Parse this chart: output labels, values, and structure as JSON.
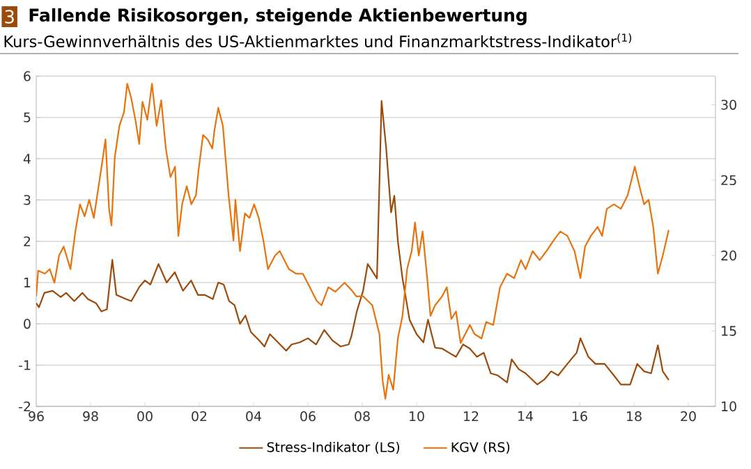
{
  "chart_data": {
    "type": "line",
    "title": "Fallende Risikosorgen, steigende Aktienbewertung",
    "subtitle": "Kurs-Gewinnverhältnis des US-Aktienmarktes und Finanzmarktstress-Indikator$^{(1)}$",
    "annotations": [
      "3"
    ],
    "xlim": [
      1996,
      2021
    ],
    "xticks": [
      {
        "value": 1996,
        "label": "96"
      },
      {
        "value": 1998,
        "label": "98"
      },
      {
        "value": 2000,
        "label": "00"
      },
      {
        "value": 2002,
        "label": "02"
      },
      {
        "value": 2004,
        "label": "04"
      },
      {
        "value": 2006,
        "label": "06"
      },
      {
        "value": 2008,
        "label": "08"
      },
      {
        "value": 2010,
        "label": "10"
      },
      {
        "value": 2012,
        "label": "12"
      },
      {
        "value": 2014,
        "label": "14"
      },
      {
        "value": 2016,
        "label": "16"
      },
      {
        "value": 2018,
        "label": "18"
      },
      {
        "value": 2020,
        "label": "20"
      }
    ],
    "ylim": [
      -2,
      6
    ],
    "yticks": [
      -2,
      -1,
      0,
      1,
      2,
      3,
      4,
      5,
      6
    ],
    "y2lim": [
      10,
      31.9
    ],
    "y2ticks": [
      10,
      15,
      20,
      25,
      30
    ],
    "grid": "y",
    "legend": "bottom",
    "line_style": "solid",
    "marker": "none",
    "series": [
      {
        "name": "Stress-Indikator (LS)",
        "color": "#9c4a0a",
        "x": [
          1996.0,
          1996.1,
          1996.3,
          1996.6,
          1996.9,
          1997.1,
          1997.4,
          1997.7,
          1997.9,
          1998.2,
          1998.4,
          1998.6,
          1998.8,
          1998.95,
          1999.3,
          1999.5,
          1999.8,
          2000.0,
          2000.2,
          2000.5,
          2000.8,
          2001.1,
          2001.4,
          2001.7,
          2001.95,
          2002.2,
          2002.5,
          2002.7,
          2002.9,
          2003.1,
          2003.3,
          2003.5,
          2003.7,
          2003.9,
          2004.2,
          2004.4,
          2004.6,
          2004.9,
          2005.2,
          2005.4,
          2005.7,
          2006.0,
          2006.3,
          2006.6,
          2006.9,
          2007.2,
          2007.5,
          2007.6,
          2007.8,
          2008.03,
          2008.2,
          2008.54,
          2008.71,
          2008.88,
          2009.06,
          2009.18,
          2009.31,
          2009.48,
          2009.74,
          2010.0,
          2010.25,
          2010.42,
          2010.68,
          2010.94,
          2011.19,
          2011.45,
          2011.71,
          2011.96,
          2012.22,
          2012.47,
          2012.73,
          2012.99,
          2013.33,
          2013.5,
          2013.76,
          2014.01,
          2014.44,
          2014.7,
          2014.95,
          2015.21,
          2015.55,
          2015.89,
          2016.03,
          2016.32,
          2016.58,
          2016.92,
          2017.26,
          2017.52,
          2017.86,
          2018.12,
          2018.37,
          2018.63,
          2018.88,
          2019.06,
          2019.28
        ],
        "values": [
          0.5,
          0.4,
          0.75,
          0.8,
          0.65,
          0.75,
          0.55,
          0.75,
          0.6,
          0.5,
          0.3,
          0.35,
          1.55,
          0.7,
          0.6,
          0.55,
          0.9,
          1.05,
          0.95,
          1.45,
          1.0,
          1.25,
          0.8,
          1.05,
          0.7,
          0.7,
          0.6,
          1.0,
          0.95,
          0.55,
          0.45,
          0.0,
          0.2,
          -0.2,
          -0.4,
          -0.55,
          -0.25,
          -0.45,
          -0.65,
          -0.5,
          -0.45,
          -0.35,
          -0.5,
          -0.15,
          -0.4,
          -0.55,
          -0.5,
          -0.3,
          0.3,
          0.8,
          1.45,
          1.1,
          5.4,
          4.25,
          2.7,
          3.1,
          2.0,
          1.1,
          0.1,
          -0.25,
          -0.45,
          0.1,
          -0.58,
          -0.6,
          -0.7,
          -0.8,
          -0.5,
          -0.6,
          -0.8,
          -0.7,
          -1.2,
          -1.25,
          -1.42,
          -0.86,
          -1.1,
          -1.2,
          -1.47,
          -1.35,
          -1.15,
          -1.25,
          -0.97,
          -0.7,
          -0.35,
          -0.8,
          -0.97,
          -0.97,
          -1.25,
          -1.47,
          -1.47,
          -0.97,
          -1.15,
          -1.2,
          -0.52,
          -1.15,
          -1.36
        ]
      },
      {
        "name": "KGV (RS)",
        "color": "#e8720c",
        "axis": "y2",
        "x": [
          1996.0,
          1996.07,
          1996.32,
          1996.5,
          1996.67,
          1996.84,
          1997.01,
          1997.26,
          1997.44,
          1997.61,
          1997.78,
          1997.95,
          1998.12,
          1998.38,
          1998.55,
          1998.68,
          1998.77,
          1998.89,
          1999.06,
          1999.23,
          1999.35,
          1999.49,
          1999.66,
          1999.79,
          1999.91,
          2000.09,
          2000.26,
          2000.43,
          2000.6,
          2000.77,
          2000.94,
          2001.11,
          2001.23,
          2001.37,
          2001.54,
          2001.71,
          2001.88,
          2001.97,
          2002.14,
          2002.31,
          2002.48,
          2002.56,
          2002.7,
          2002.87,
          2003.08,
          2003.26,
          2003.33,
          2003.5,
          2003.68,
          2003.85,
          2004.02,
          2004.19,
          2004.36,
          2004.53,
          2004.79,
          2004.96,
          2005.13,
          2005.3,
          2005.56,
          2005.81,
          2006.07,
          2006.32,
          2006.5,
          2006.75,
          2007.01,
          2007.35,
          2007.61,
          2007.78,
          2008.03,
          2008.37,
          2008.63,
          2008.75,
          2008.85,
          2008.97,
          2009.14,
          2009.31,
          2009.48,
          2009.65,
          2009.82,
          2009.94,
          2010.08,
          2010.22,
          2010.39,
          2010.51,
          2010.68,
          2010.94,
          2011.11,
          2011.28,
          2011.45,
          2011.62,
          2011.79,
          2011.96,
          2012.13,
          2012.39,
          2012.56,
          2012.82,
          2013.07,
          2013.33,
          2013.59,
          2013.84,
          2014.01,
          2014.27,
          2014.53,
          2014.78,
          2015.04,
          2015.29,
          2015.55,
          2015.81,
          2016.03,
          2016.2,
          2016.41,
          2016.66,
          2016.83,
          2017.0,
          2017.26,
          2017.52,
          2017.77,
          2018.03,
          2018.2,
          2018.37,
          2018.54,
          2018.71,
          2018.88,
          2019.06,
          2019.28
        ],
        "values": [
          17.3,
          19.0,
          18.8,
          19.1,
          18.2,
          20.0,
          20.6,
          19.1,
          21.6,
          23.4,
          22.6,
          23.7,
          22.5,
          25.6,
          27.7,
          23.1,
          22.0,
          26.5,
          28.6,
          29.5,
          31.4,
          30.5,
          28.9,
          27.4,
          30.2,
          29.0,
          31.4,
          28.6,
          30.3,
          27.1,
          25.2,
          25.9,
          21.3,
          23.4,
          24.6,
          23.4,
          24.0,
          25.6,
          28.0,
          27.7,
          27.1,
          28.3,
          29.8,
          28.6,
          24.0,
          21.0,
          23.7,
          20.3,
          22.8,
          22.5,
          23.4,
          22.5,
          21.0,
          19.1,
          20.0,
          20.3,
          19.7,
          19.1,
          18.8,
          18.8,
          17.9,
          17.0,
          16.7,
          17.9,
          17.6,
          18.2,
          17.7,
          17.3,
          17.3,
          16.7,
          14.8,
          11.7,
          10.5,
          12.1,
          11.1,
          14.5,
          16.0,
          19.1,
          20.3,
          22.2,
          20.0,
          21.6,
          18.5,
          16.0,
          16.7,
          17.3,
          17.9,
          15.8,
          16.3,
          14.2,
          14.8,
          15.4,
          14.8,
          14.5,
          15.6,
          15.4,
          17.9,
          18.8,
          18.5,
          19.7,
          19.1,
          20.3,
          19.7,
          20.3,
          21.0,
          21.6,
          21.3,
          20.3,
          18.5,
          20.6,
          21.3,
          21.9,
          21.3,
          23.1,
          23.4,
          23.1,
          24.0,
          25.9,
          24.6,
          23.4,
          23.7,
          21.9,
          18.8,
          20.0,
          21.7
        ]
      }
    ]
  }
}
